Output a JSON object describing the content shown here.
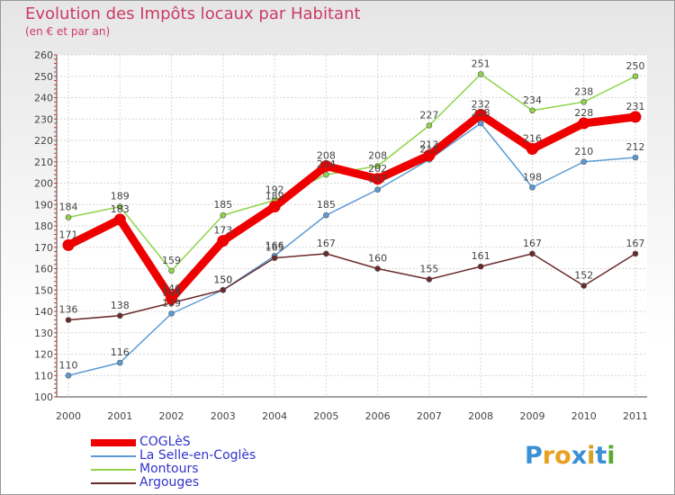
{
  "title": "Evolution des Impôts locaux par Habitant",
  "subtitle": "(en € et par an)",
  "logo": {
    "letters": [
      "P",
      "r",
      "o",
      "x",
      "i",
      "t",
      "i"
    ],
    "colors": [
      "#3a8fd6",
      "#e8a020",
      "#e8a020",
      "#3a8fd6",
      "#d6a020",
      "#3a8fd6",
      "#5aaa30"
    ]
  },
  "chart_data": {
    "type": "line",
    "title": "Evolution des Impôts locaux par Habitant",
    "subtitle": "(en € et par an)",
    "x": [
      "2000",
      "2001",
      "2002",
      "2003",
      "2004",
      "2005",
      "2006",
      "2007",
      "2008",
      "2009",
      "2010",
      "2011"
    ],
    "ylim": [
      100,
      260
    ],
    "yticks": [
      "100",
      "110",
      "120",
      "130",
      "140",
      "150",
      "160",
      "170",
      "180",
      "190",
      "200",
      "210",
      "220",
      "230",
      "240",
      "250",
      "260"
    ],
    "grid": true,
    "legend_position": "bottom-left",
    "series": [
      {
        "name": "COGLèS",
        "color": "#ee0000",
        "thick": true,
        "values": [
          171,
          183,
          146,
          173,
          189,
          208,
          202,
          213,
          232,
          216,
          228,
          231
        ],
        "labels": [
          "171",
          "183",
          "146",
          "173",
          "189",
          "208",
          "202",
          "213",
          "232",
          "216",
          "228",
          "231"
        ]
      },
      {
        "name": "La Selle-en-Coglès",
        "color": "#5b9bd5",
        "thick": false,
        "values": [
          110,
          116,
          139,
          150,
          166,
          185,
          197,
          211,
          228,
          198,
          210,
          212
        ],
        "labels": [
          "110",
          "116",
          "139",
          "150",
          "166",
          "185",
          "197",
          "211",
          "228",
          "198",
          "210",
          "212"
        ]
      },
      {
        "name": "Montours",
        "color": "#8ed44a",
        "thick": false,
        "values": [
          184,
          189,
          159,
          185,
          192,
          204,
          208,
          227,
          251,
          234,
          238,
          250
        ],
        "labels": [
          "184",
          "189",
          "159",
          "185",
          "192",
          "204",
          "208",
          "227",
          "251",
          "234",
          "238",
          "250"
        ]
      },
      {
        "name": "Argouges",
        "color": "#6b2a2a",
        "thick": false,
        "values": [
          136,
          138,
          144,
          150,
          165,
          167,
          160,
          155,
          161,
          167,
          152,
          167
        ],
        "labels": [
          "136",
          "138",
          "144",
          "150",
          "165",
          "167",
          "160",
          "155",
          "161",
          "167",
          "152",
          "167"
        ]
      }
    ]
  }
}
